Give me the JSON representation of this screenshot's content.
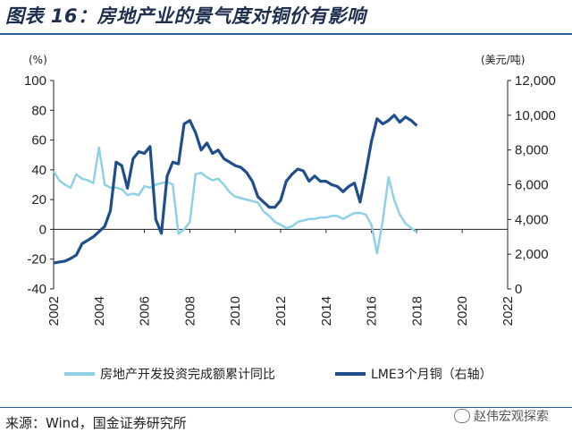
{
  "title": "图表 16：房地产业的景气度对铜价有影响",
  "source": "来源：Wind，国金证券研究所",
  "watermark": "赵伟宏观探索",
  "chart_data": {
    "type": "line",
    "x_start": 2002.0,
    "x_step": 0.25,
    "x_range": [
      2002,
      2022
    ],
    "x_ticks": [
      "2002",
      "2004",
      "2006",
      "2008",
      "2010",
      "2012",
      "2014",
      "2016",
      "2018",
      "2020",
      "2022"
    ],
    "left_axis": {
      "unit": "(%)",
      "range": [
        -40,
        100
      ],
      "ticks": [
        "-40",
        "-20",
        "0",
        "20",
        "40",
        "60",
        "80",
        "100"
      ]
    },
    "right_axis": {
      "unit": "(美元/吨)",
      "range": [
        0,
        12000
      ],
      "ticks": [
        "0",
        "2,000",
        "4,000",
        "6,000",
        "8,000",
        "10,000",
        "12,000"
      ]
    },
    "series": [
      {
        "name": "房地产开发投资完成额累计同比",
        "axis": "left",
        "color": "#8fd0e6",
        "values": [
          39,
          33,
          30,
          28,
          37,
          34,
          33,
          31,
          55,
          30,
          28,
          28,
          27,
          23,
          24,
          23,
          29,
          28,
          30,
          31,
          32,
          30,
          -3,
          0,
          5,
          37,
          38,
          35,
          33,
          34,
          30,
          25,
          22,
          21,
          20,
          19,
          18,
          12,
          9,
          5,
          3,
          1,
          2,
          5,
          6,
          7,
          7,
          8,
          8,
          9,
          9,
          7,
          9,
          11,
          11,
          10,
          3,
          -16,
          6,
          35,
          20,
          10,
          4,
          1,
          -2
        ]
      },
      {
        "name": "LME3个月铜（右轴）",
        "axis": "right",
        "color": "#1f4e8c",
        "values": [
          1500,
          1550,
          1600,
          1750,
          1950,
          2600,
          2800,
          3000,
          3300,
          3600,
          4500,
          7300,
          7100,
          5800,
          7500,
          7900,
          7800,
          8200,
          4000,
          3200,
          6500,
          7300,
          7200,
          9500,
          9700,
          9000,
          8000,
          8400,
          7800,
          8000,
          7500,
          7300,
          7100,
          7000,
          6700,
          6200,
          5300,
          5000,
          4700,
          4700,
          5100,
          6200,
          6600,
          6900,
          6800,
          6200,
          6500,
          6200,
          6200,
          6000,
          5900,
          5600,
          5900,
          6100,
          5000,
          6700,
          8500,
          9800,
          9500,
          9700,
          10000,
          9600,
          9900,
          9700,
          9400
        ]
      }
    ]
  }
}
